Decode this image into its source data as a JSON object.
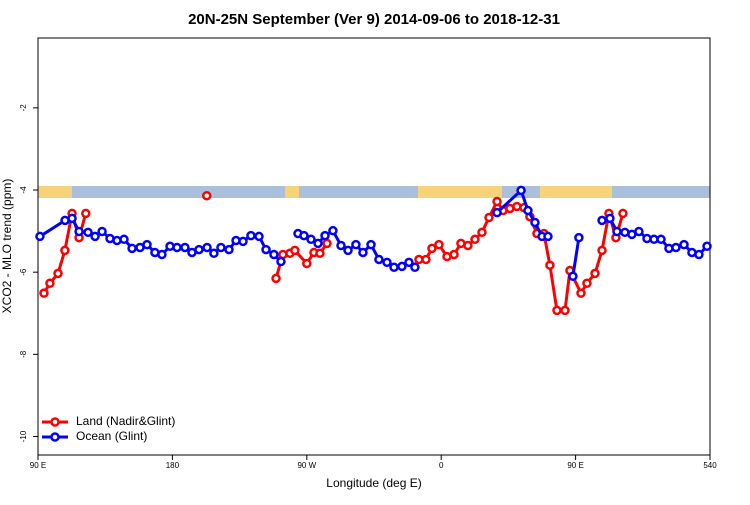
{
  "chart_data": {
    "type": "line",
    "title": "20N-25N September (Ver 9)   2014-09-06 to 2018-12-31",
    "x_label": "Longitude (deg E)",
    "y_label": "XCO2 - MLO trend (ppm)",
    "xlim": [
      90,
      540
    ],
    "xticks": [
      {
        "value": 90,
        "label": "90 E"
      },
      180,
      {
        "value": 270,
        "label": "90 W"
      },
      {
        "value": 360,
        "label": "0"
      },
      {
        "value": 450,
        "label": "90 E"
      },
      540
    ],
    "ylim": [
      -10.45,
      -0.3
    ],
    "yticks": [
      -2,
      -4,
      -6,
      -8,
      -10
    ],
    "legend": "bottom-left",
    "series": [
      {
        "name": "Land (Nadir&Glint)",
        "color": "#ff0000",
        "x": [
          94,
          98,
          103.4,
          108,
          112.8,
          117.5,
          122,
          null,
          203,
          null,
          249.4,
          254,
          258.7,
          262,
          270,
          274.8,
          278.8,
          283.5,
          null,
          345.1,
          349.8,
          353.8,
          358.5,
          363.9,
          368.6,
          373.2,
          377.9,
          382.6,
          387.3,
          392,
          397.4,
          401.4,
          406,
          410.7,
          415.4,
          419.4,
          424.1,
          428.8,
          432.8,
          437.5,
          442.9,
          446.2,
          453.6,
          457.6,
          463,
          467.7,
          472.3,
          477,
          481.7
        ],
        "values": [
          -6.51,
          -6.27,
          -6.03,
          -5.47,
          -4.57,
          -5.16,
          -4.57,
          null,
          -4.14,
          null,
          -6.15,
          -5.57,
          -5.54,
          -5.47,
          -5.79,
          -5.52,
          -5.54,
          -5.3,
          null,
          -5.69,
          -5.69,
          -5.42,
          -5.33,
          -5.62,
          -5.57,
          -5.3,
          -5.35,
          -5.2,
          -5.03,
          -4.67,
          -4.28,
          -4.5,
          -4.45,
          -4.4,
          -4.43,
          -4.65,
          -5.06,
          -5.06,
          -5.83,
          -6.93,
          -6.93,
          -5.96,
          -6.51,
          -6.27,
          -6.03,
          -5.47,
          -4.57,
          -5.16,
          -4.57
        ]
      },
      {
        "name": "Ocean (Glint)",
        "color": "#0000ff",
        "x": [
          91.3,
          108.1,
          112.8,
          117.5,
          123.5,
          128.2,
          132.9,
          138.2,
          142.9,
          147.6,
          153,
          158.3,
          163,
          168.3,
          173,
          178.4,
          183.1,
          188.4,
          193.1,
          197.8,
          203.2,
          207.8,
          212.5,
          217.9,
          222.6,
          227.3,
          232.6,
          238,
          242.7,
          248,
          252.7,
          null,
          264.1,
          268.1,
          272.8,
          277.5,
          282.2,
          287.5,
          292.9,
          297.6,
          302.9,
          307.6,
          313,
          318.3,
          323.7,
          328.4,
          333.7,
          338.4,
          342.4,
          null,
          397.4,
          413.5,
          418.1,
          422.8,
          427.5,
          431.5,
          null,
          448.2,
          452.2,
          null,
          467.7,
          473,
          477.7,
          483,
          487.7,
          492.4,
          497.8,
          502.5,
          507.2,
          512.5,
          517.2,
          522.6,
          527.9,
          532.6,
          538
        ],
        "values": [
          -5.13,
          -4.74,
          -4.69,
          -5.01,
          -5.03,
          -5.13,
          -5.01,
          -5.18,
          -5.23,
          -5.2,
          -5.42,
          -5.4,
          -5.33,
          -5.52,
          -5.57,
          -5.37,
          -5.4,
          -5.4,
          -5.52,
          -5.45,
          -5.4,
          -5.54,
          -5.4,
          -5.45,
          -5.23,
          -5.25,
          -5.11,
          -5.13,
          -5.45,
          -5.57,
          -5.74,
          null,
          -5.06,
          -5.11,
          -5.2,
          -5.3,
          -5.11,
          -4.99,
          -5.35,
          -5.47,
          -5.33,
          -5.52,
          -5.33,
          -5.69,
          -5.76,
          -5.88,
          -5.86,
          -5.76,
          -5.88,
          null,
          -4.55,
          -4.01,
          -4.5,
          -4.79,
          -5.13,
          -5.13,
          null,
          -6.1,
          -5.16,
          null,
          -4.74,
          -4.69,
          -5.01,
          -5.03,
          -5.08,
          -5.01,
          -5.18,
          -5.2,
          -5.2,
          -5.42,
          -5.4,
          -5.33,
          -5.52,
          -5.57,
          -5.37
        ]
      }
    ]
  }
}
